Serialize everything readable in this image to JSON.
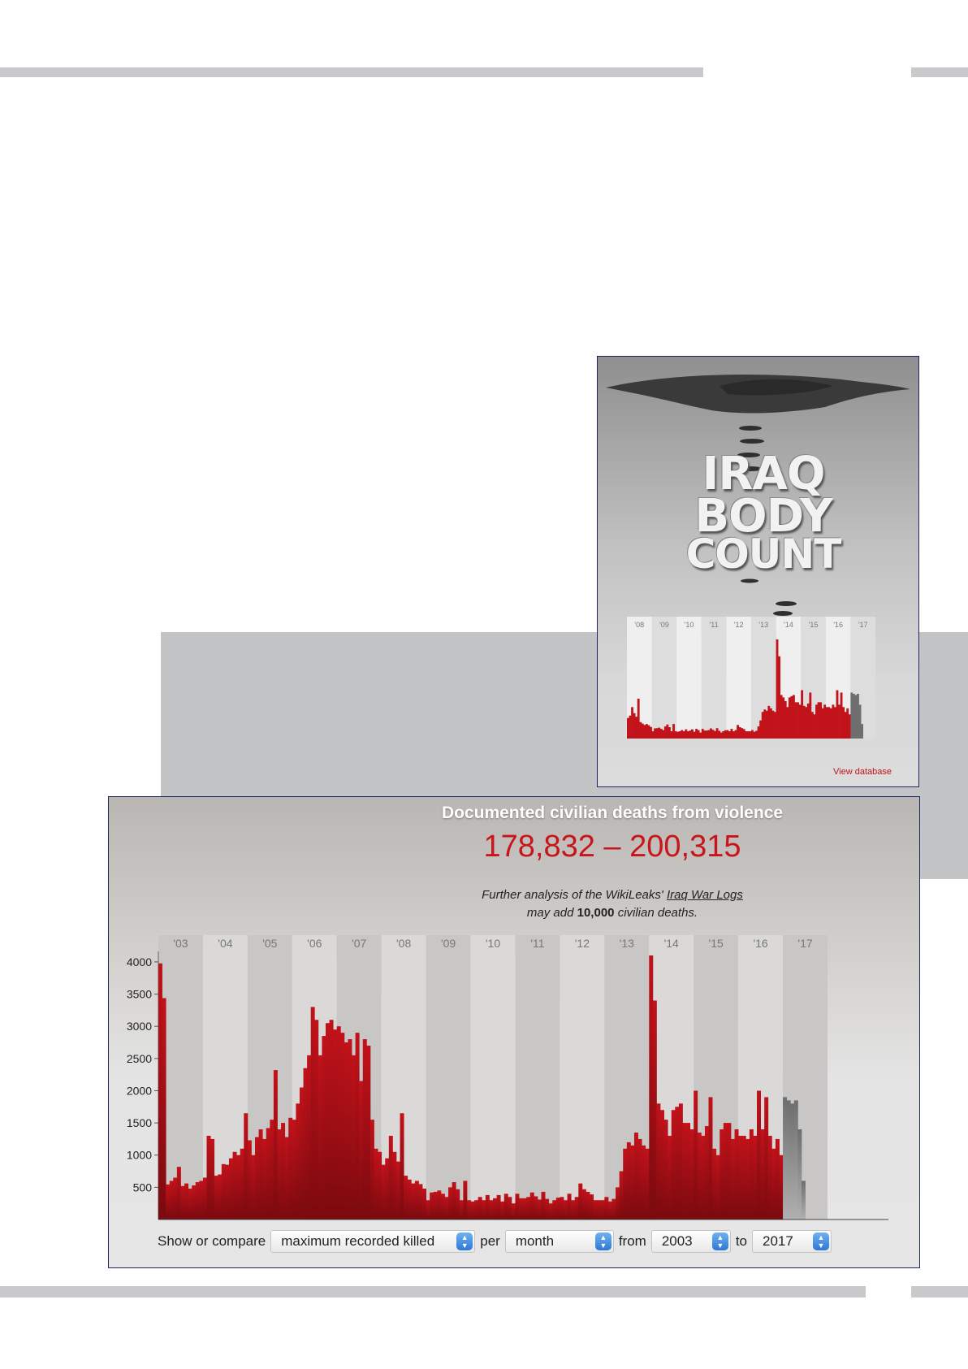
{
  "poster": {
    "title_lines": [
      "IRAQ",
      "BODY",
      "COUNT"
    ],
    "year_labels": [
      "'08",
      "'09",
      "'10",
      "'11",
      "'12",
      "'13",
      "'14",
      "'15",
      "'16",
      "'17"
    ],
    "link_label": "View database"
  },
  "header": {
    "title": "Documented civilian deaths from violence",
    "range": "178,832 – 200,315",
    "note_prefix": "Further analysis of the WikiLeaks'",
    "note_link": "Iraq War Logs",
    "note_middle": "may add",
    "note_bold": "10,000",
    "note_suffix": "civilian deaths."
  },
  "controls": {
    "label_show": "Show or compare",
    "metric": "maximum recorded killed",
    "label_per": "per",
    "period": "month",
    "label_from": "from",
    "from_year": "2003",
    "label_to": "to",
    "to_year": "2017"
  },
  "colors": {
    "bar": "#c2121a",
    "bar_partial": "#6e6e6e",
    "accent": "#c8141b",
    "frame": "#1d2660"
  },
  "chart_data": {
    "type": "bar",
    "x_ticks": [
      "'03",
      "'04",
      "'05",
      "'06",
      "'07",
      "'08",
      "'09",
      "'10",
      "'11",
      "'12",
      "'13",
      "'14",
      "'15",
      "'16",
      "'17"
    ],
    "y_ticks": [
      500,
      1000,
      1500,
      2000,
      2500,
      3000,
      3500,
      4000
    ],
    "ylim": [
      0,
      4200
    ],
    "x_start": "2003-01",
    "series": [
      {
        "year": 2003,
        "values": [
          3977,
          3438,
          545,
          600,
          650,
          818,
          520,
          560,
          480,
          530,
          580,
          600
        ]
      },
      {
        "year": 2004,
        "values": [
          650,
          1300,
          1250,
          680,
          700,
          860,
          850,
          950,
          1050,
          1000,
          1100,
          1650
        ]
      },
      {
        "year": 2005,
        "values": [
          1230,
          1000,
          1280,
          1400,
          1250,
          1420,
          1550,
          2320,
          1400,
          1500,
          1280,
          1580
        ]
      },
      {
        "year": 2006,
        "values": [
          1550,
          1800,
          2050,
          2350,
          2550,
          3300,
          3100,
          2550,
          2850,
          3050,
          3100,
          2950
        ]
      },
      {
        "year": 2007,
        "values": [
          3000,
          2900,
          2750,
          2800,
          2550,
          2900,
          2150,
          2800,
          2700,
          1550,
          1100,
          1050
        ]
      },
      {
        "year": 2008,
        "values": [
          850,
          950,
          1300,
          1050,
          900,
          1650,
          680,
          620,
          560,
          600,
          550,
          480
        ]
      },
      {
        "year": 2009,
        "values": [
          300,
          420,
          430,
          450,
          400,
          350,
          500,
          580,
          470,
          300,
          600,
          300
        ]
      },
      {
        "year": 2010,
        "values": [
          280,
          300,
          350,
          300,
          380,
          300,
          330,
          380,
          280,
          400,
          350,
          250
        ]
      },
      {
        "year": 2011,
        "values": [
          400,
          330,
          330,
          350,
          420,
          360,
          310,
          430,
          320,
          250,
          300,
          340
        ]
      },
      {
        "year": 2012,
        "values": [
          350,
          300,
          400,
          300,
          350,
          560,
          470,
          430,
          390,
          300,
          300,
          300
        ]
      },
      {
        "year": 2013,
        "values": [
          350,
          280,
          320,
          500,
          750,
          1100,
          1200,
          1150,
          1350,
          1250,
          1150,
          1100
        ]
      },
      {
        "year": 2014,
        "values": [
          4100,
          3400,
          1800,
          1700,
          1550,
          1300,
          1700,
          1750,
          1800,
          1500,
          1500,
          1400
        ]
      },
      {
        "year": 2015,
        "values": [
          2000,
          1350,
          1300,
          1450,
          1900,
          1100,
          1000,
          1400,
          1500,
          1500,
          1250,
          1400
        ]
      },
      {
        "year": 2016,
        "values": [
          1300,
          1300,
          1250,
          1400,
          1300,
          2000,
          1400,
          1900,
          1300,
          1100,
          1250,
          1000
        ]
      },
      {
        "year": 2017,
        "values": [
          1900,
          1850,
          1800,
          1850,
          1400,
          600
        ]
      }
    ],
    "partial_from": "2017-01",
    "grid": false
  }
}
